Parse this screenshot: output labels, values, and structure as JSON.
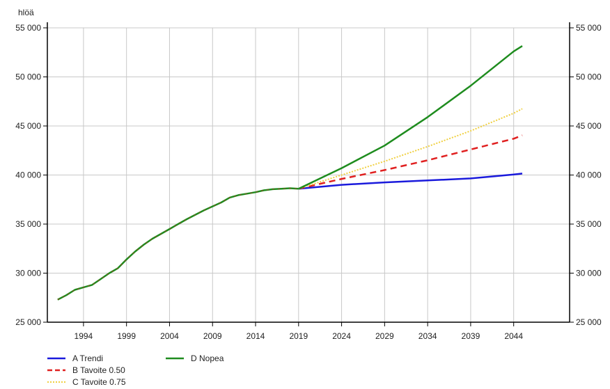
{
  "chart_data": {
    "type": "line",
    "title": "",
    "ylabel": "hlöä",
    "xlabel": "",
    "xlim": [
      1989.8,
      2050.5
    ],
    "ylim": [
      25000,
      55000
    ],
    "y_ticks": [
      25000,
      30000,
      35000,
      40000,
      45000,
      50000,
      55000
    ],
    "y_tick_labels": [
      "25 000",
      "30 000",
      "35 000",
      "40 000",
      "45 000",
      "50 000",
      "55 000"
    ],
    "x_ticks": [
      1994,
      1999,
      2004,
      2009,
      2014,
      2019,
      2024,
      2029,
      2034,
      2039,
      2044
    ],
    "x_tick_labels": [
      "1994",
      "1999",
      "2004",
      "2009",
      "2014",
      "2019",
      "2024",
      "2029",
      "2034",
      "2039",
      "2044"
    ],
    "grid": true,
    "secondary_y_axis": true,
    "legend_position": "bottom-left",
    "history": {
      "x": [
        1991,
        1992,
        1993,
        1994,
        1995,
        1996,
        1997,
        1998,
        1999,
        2000,
        2001,
        2002,
        2003,
        2004,
        2005,
        2006,
        2007,
        2008,
        2009,
        2010,
        2011,
        2012,
        2013,
        2014,
        2015,
        2016,
        2017,
        2018,
        2019
      ],
      "y": [
        27300,
        27750,
        28300,
        28550,
        28800,
        29400,
        30000,
        30500,
        31400,
        32200,
        32900,
        33500,
        34000,
        34500,
        35000,
        35500,
        35950,
        36400,
        36800,
        37200,
        37700,
        37950,
        38100,
        38250,
        38450,
        38550,
        38600,
        38650,
        38600
      ]
    },
    "series": [
      {
        "name": "A Trendi",
        "color": "#1a1adc",
        "style": "solid",
        "x": [
          2019,
          2024,
          2029,
          2034,
          2039,
          2044,
          2045
        ],
        "y": [
          38600,
          39000,
          39250,
          39450,
          39650,
          40050,
          40150
        ]
      },
      {
        "name": "B Tavoite 0.50",
        "color": "#e02020",
        "style": "dashed",
        "x": [
          2019,
          2024,
          2029,
          2034,
          2039,
          2044,
          2045
        ],
        "y": [
          38600,
          39600,
          40500,
          41500,
          42600,
          43700,
          44050
        ]
      },
      {
        "name": "C Tavoite 0.75",
        "color": "#f0d040",
        "style": "dotted",
        "x": [
          2019,
          2024,
          2029,
          2034,
          2039,
          2044,
          2045
        ],
        "y": [
          38600,
          40000,
          41400,
          42900,
          44500,
          46300,
          46750
        ]
      },
      {
        "name": "D Nopea",
        "color": "#1e8c1e",
        "style": "solid",
        "x": [
          2019,
          2024,
          2029,
          2034,
          2039,
          2044,
          2045
        ],
        "y": [
          38600,
          40700,
          43000,
          45900,
          49100,
          52600,
          53150
        ]
      }
    ]
  }
}
